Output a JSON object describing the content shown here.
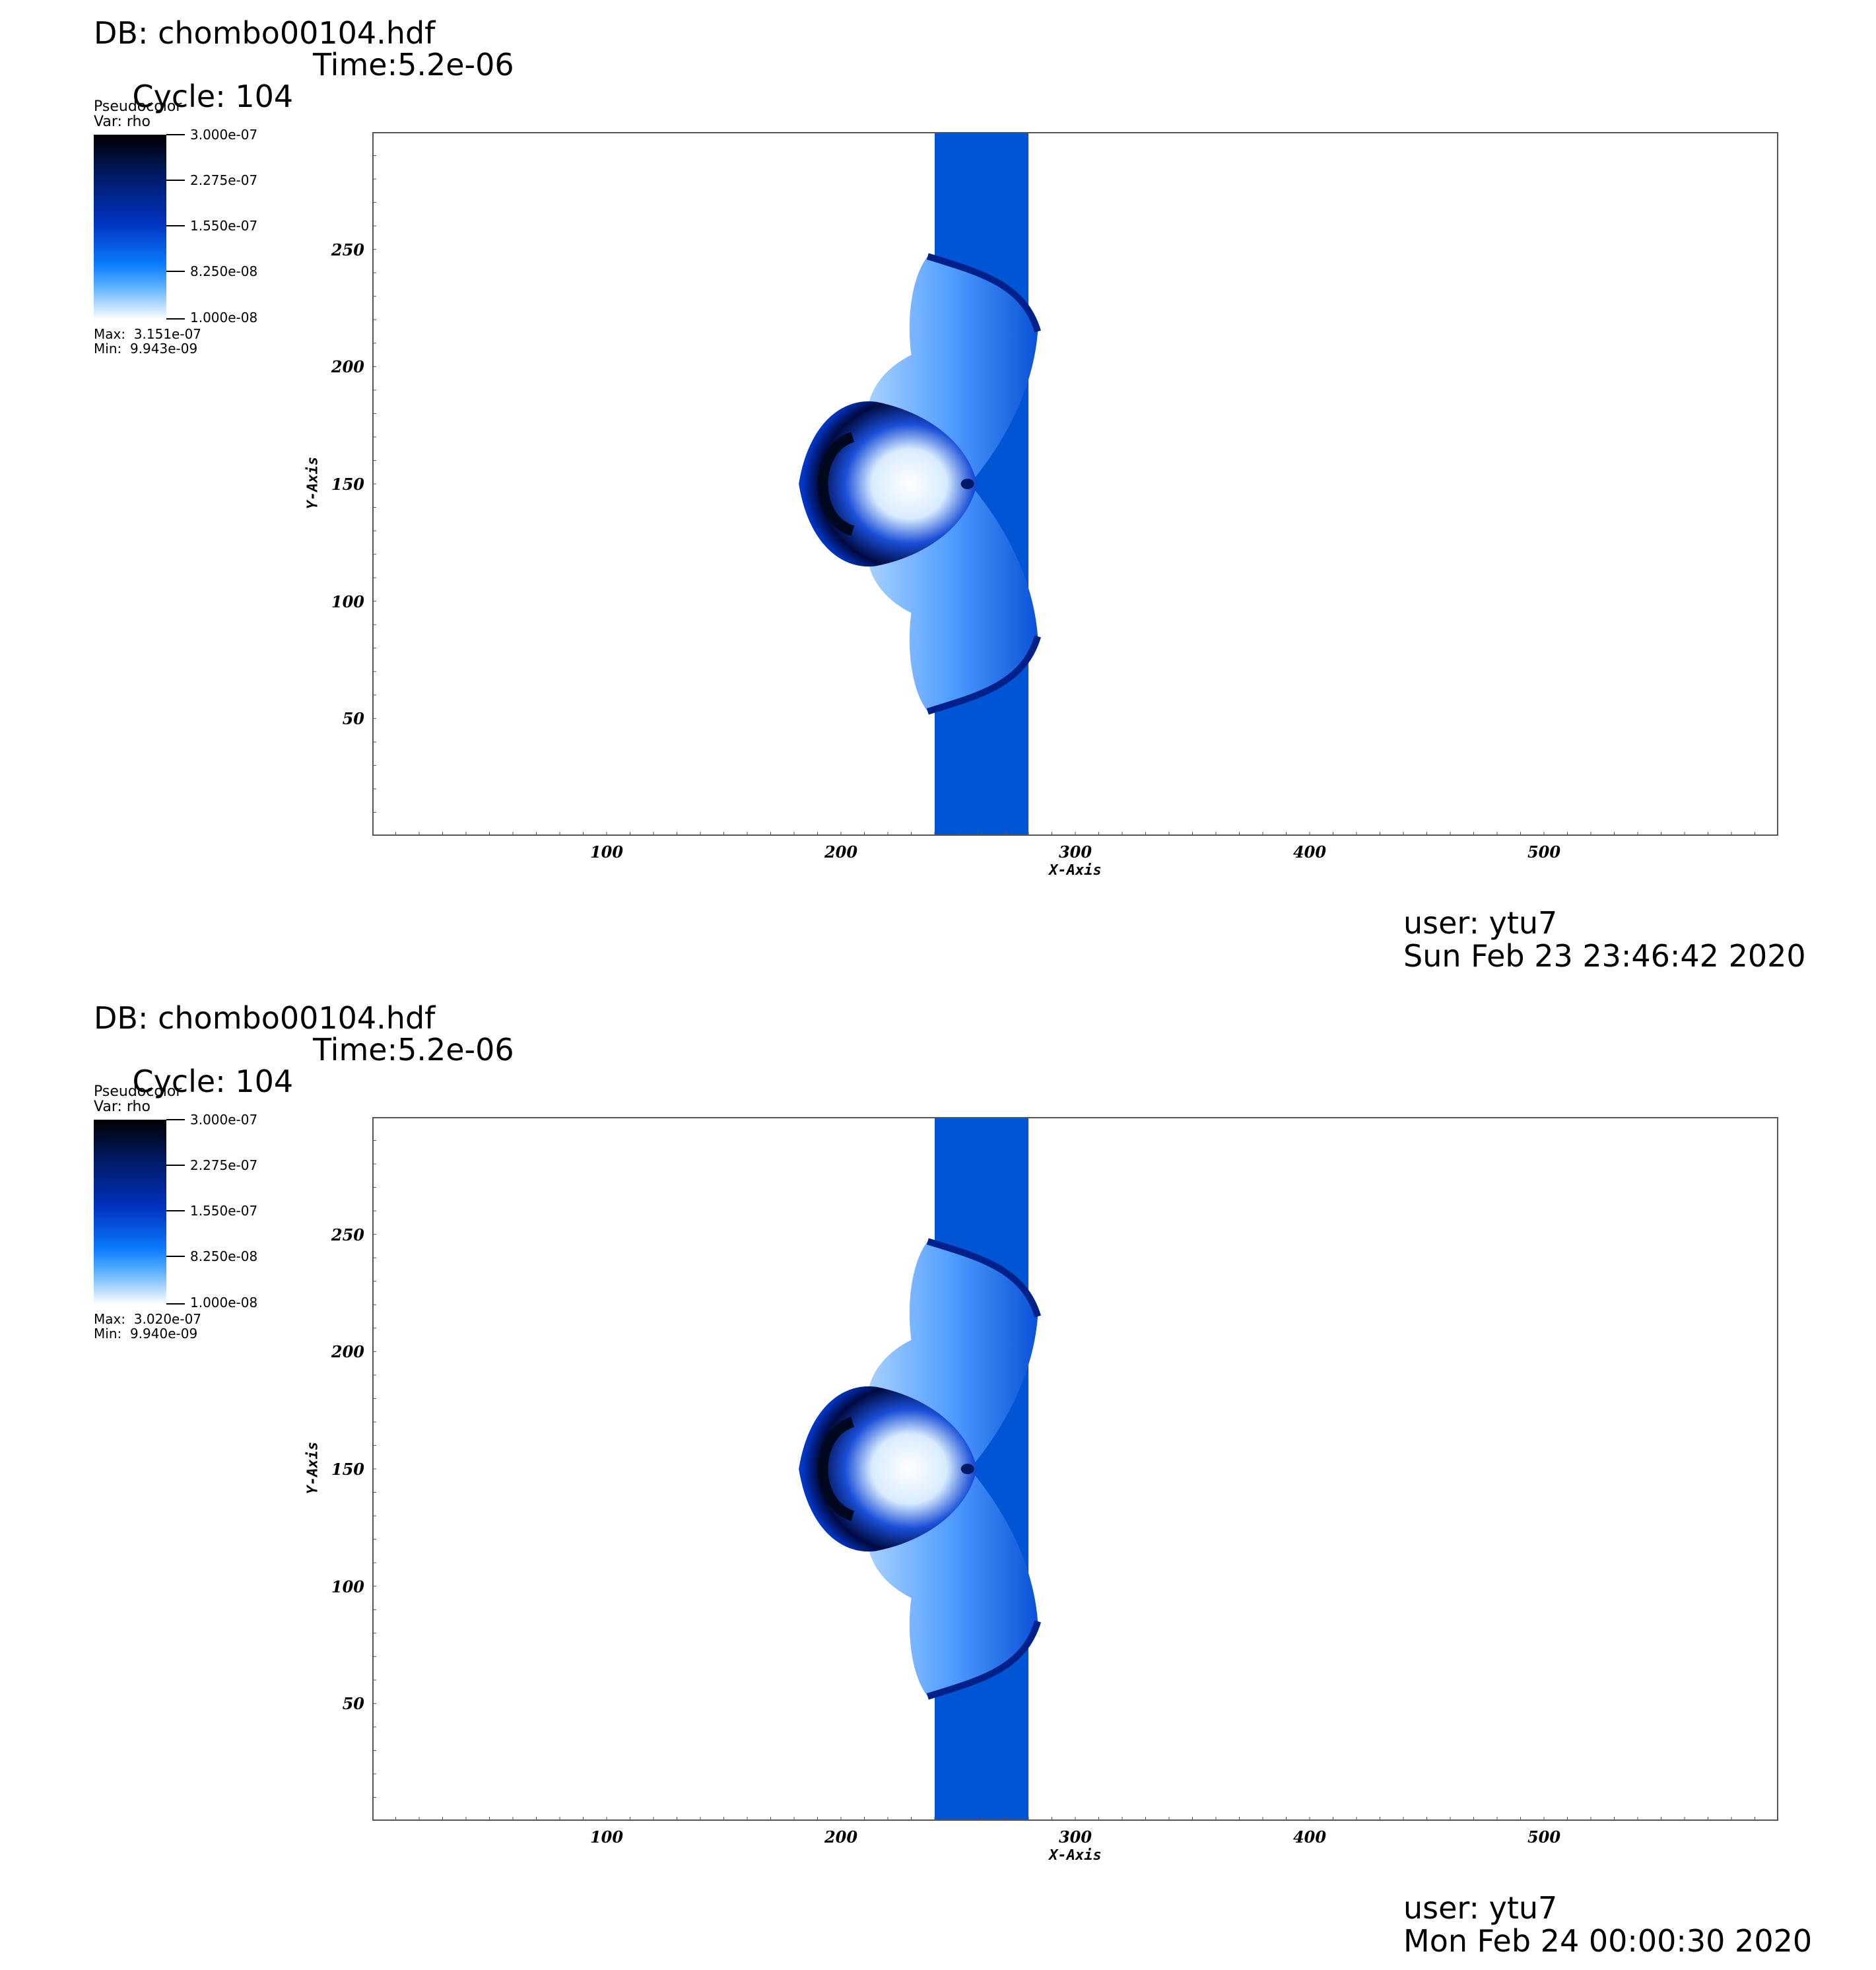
{
  "panels": [
    {
      "db": "DB: chombo00104.hdf",
      "cycle": "Cycle: 104",
      "time": "Time:5.2e-06",
      "legend": {
        "title": "Pseudocolor",
        "var": "Var: rho",
        "labels": [
          "3.000e-07",
          "2.275e-07",
          "1.550e-07",
          "8.250e-08",
          "1.000e-08"
        ],
        "max": "Max:  3.151e-07",
        "min": "Min:  9.943e-09"
      },
      "user": "user: ytu7",
      "date": "Sun Feb 23 23:46:42 2020"
    },
    {
      "db": "DB: chombo00104.hdf",
      "cycle": "Cycle: 104",
      "time": "Time:5.2e-06",
      "legend": {
        "title": "Pseudocolor",
        "var": "Var: rho",
        "labels": [
          "3.000e-07",
          "2.275e-07",
          "1.550e-07",
          "8.250e-08",
          "1.000e-08"
        ],
        "max": "Max:  3.020e-07",
        "min": "Min:  9.940e-09"
      },
      "user": "user: ytu7",
      "date": "Mon Feb 24 00:00:30 2020"
    }
  ],
  "chart_data": [
    {
      "type": "heatmap",
      "variable": "rho",
      "colorscale": [
        "#ffffff",
        "#0a7cff",
        "#0033c0",
        "#001a66",
        "#000000"
      ],
      "xlabel": "X-Axis",
      "ylabel": "Y-Axis",
      "xlim": [
        0,
        600
      ],
      "ylim": [
        0,
        300
      ],
      "xticks": [
        100,
        200,
        300,
        400,
        500
      ],
      "yticks": [
        50,
        100,
        150,
        200,
        250
      ],
      "colorbar_range": [
        1e-08,
        3e-07
      ],
      "max": 3.151e-07,
      "min": 9.943e-09
    },
    {
      "type": "heatmap",
      "variable": "rho",
      "colorscale": [
        "#ffffff",
        "#0a7cff",
        "#0033c0",
        "#001a66",
        "#000000"
      ],
      "xlabel": "X-Axis",
      "ylabel": "Y-Axis",
      "xlim": [
        0,
        600
      ],
      "ylim": [
        0,
        300
      ],
      "xticks": [
        100,
        200,
        300,
        400,
        500
      ],
      "yticks": [
        50,
        100,
        150,
        200,
        250
      ],
      "colorbar_range": [
        1e-08,
        3e-07
      ],
      "max": 3.02e-07,
      "min": 9.94e-09
    }
  ]
}
